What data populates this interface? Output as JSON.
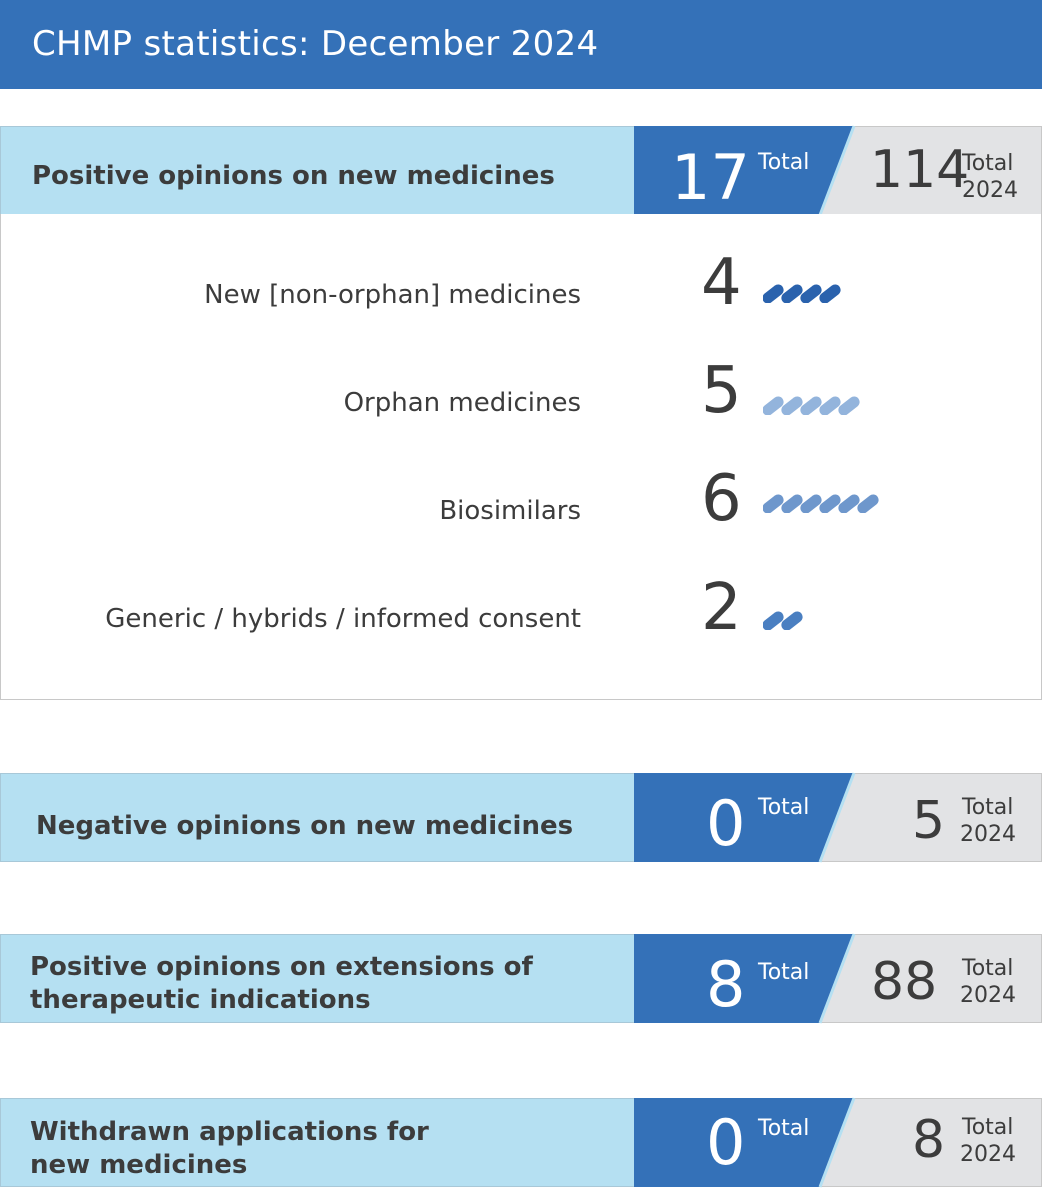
{
  "header": {
    "title": "CHMP statistics: December 2024"
  },
  "sections": [
    {
      "label_lines": [
        "Positive opinions on new medicines"
      ],
      "month_value": "17",
      "month_label": "Total",
      "year_value": "114",
      "year_label_1": "Total",
      "year_label_2": "2024"
    },
    {
      "label_lines": [
        "Negative opinions on new medicines"
      ],
      "month_value": "0",
      "month_label": "Total",
      "year_value": "5",
      "year_label_1": "Total",
      "year_label_2": "2024"
    },
    {
      "label_lines": [
        "Positive opinions on extensions of",
        "therapeutic indications"
      ],
      "month_value": "8",
      "month_label": "Total",
      "year_value": "88",
      "year_label_1": "Total",
      "year_label_2": "2024"
    },
    {
      "label_lines": [
        "Withdrawn applications for",
        "new medicines"
      ],
      "month_value": "0",
      "month_label": "Total",
      "year_value": "8",
      "year_label_1": "Total",
      "year_label_2": "2024"
    }
  ],
  "breakdown": [
    {
      "label": "New [non-orphan] medicines",
      "value": "4",
      "count": 4,
      "pill_color": "#2a62ad"
    },
    {
      "label": "Orphan medicines",
      "value": "5",
      "count": 5,
      "pill_color": "#93b4dc"
    },
    {
      "label": "Biosimilars",
      "value": "6",
      "count": 6,
      "pill_color": "#6e97cc"
    },
    {
      "label": "Generic / hybrids / informed consent",
      "value": "2",
      "count": 2,
      "pill_color": "#4a7fc1"
    }
  ],
  "colors": {
    "brand_blue": "#3471b8",
    "light_blue": "#b5e0f2",
    "grey_panel": "#e2e3e5",
    "slant_line": "#b5e0f2"
  }
}
